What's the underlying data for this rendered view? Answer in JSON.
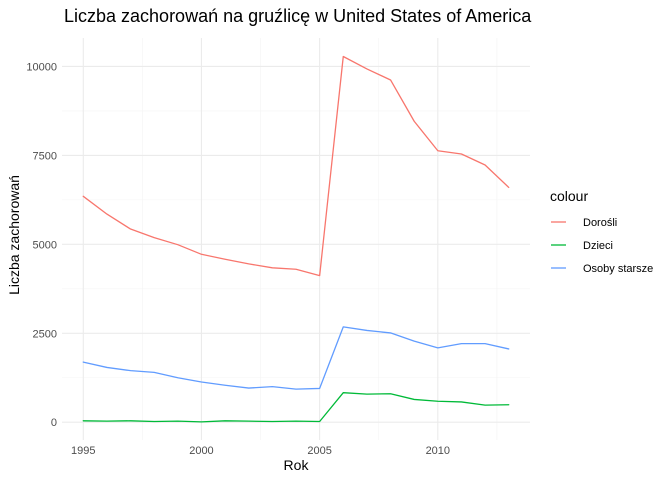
{
  "chart_data": {
    "type": "line",
    "title": "Liczba zachorowań na gruźlicę w United States of America",
    "xlabel": "Rok",
    "ylabel": "Liczba zachorowań",
    "x": [
      1995,
      1996,
      1997,
      1998,
      1999,
      2000,
      2001,
      2002,
      2003,
      2004,
      2005,
      2006,
      2007,
      2008,
      2009,
      2010,
      2011,
      2012,
      2013
    ],
    "xlim": [
      1994.1,
      2013.9
    ],
    "ylim": [
      -500,
      10800
    ],
    "x_ticks": [
      1995,
      2000,
      2005,
      2010
    ],
    "x_tick_labels": [
      "1995",
      "2000",
      "2005",
      "2010"
    ],
    "y_ticks": [
      0,
      2500,
      5000,
      7500,
      10000
    ],
    "y_tick_labels": [
      "0",
      "2500",
      "5000",
      "7500",
      "10000"
    ],
    "grid": true,
    "legend": {
      "title": "colour",
      "placement": "right"
    },
    "series": [
      {
        "name": "Dorośli",
        "color": "#f8766d",
        "values": [
          6350,
          5850,
          5430,
          5190,
          4990,
          4720,
          4580,
          4450,
          4340,
          4300,
          4120,
          10280,
          9930,
          9620,
          8460,
          7630,
          7540,
          7230,
          6600
        ]
      },
      {
        "name": "Dzieci",
        "color": "#00ba38",
        "values": [
          40,
          30,
          40,
          20,
          30,
          10,
          40,
          30,
          20,
          30,
          20,
          830,
          790,
          800,
          640,
          590,
          570,
          480,
          490
        ]
      },
      {
        "name": "Osoby starsze",
        "color": "#619cff",
        "values": [
          1690,
          1540,
          1450,
          1400,
          1250,
          1130,
          1040,
          960,
          1000,
          930,
          950,
          2680,
          2580,
          2510,
          2280,
          2090,
          2210,
          2210,
          2060
        ]
      }
    ]
  }
}
